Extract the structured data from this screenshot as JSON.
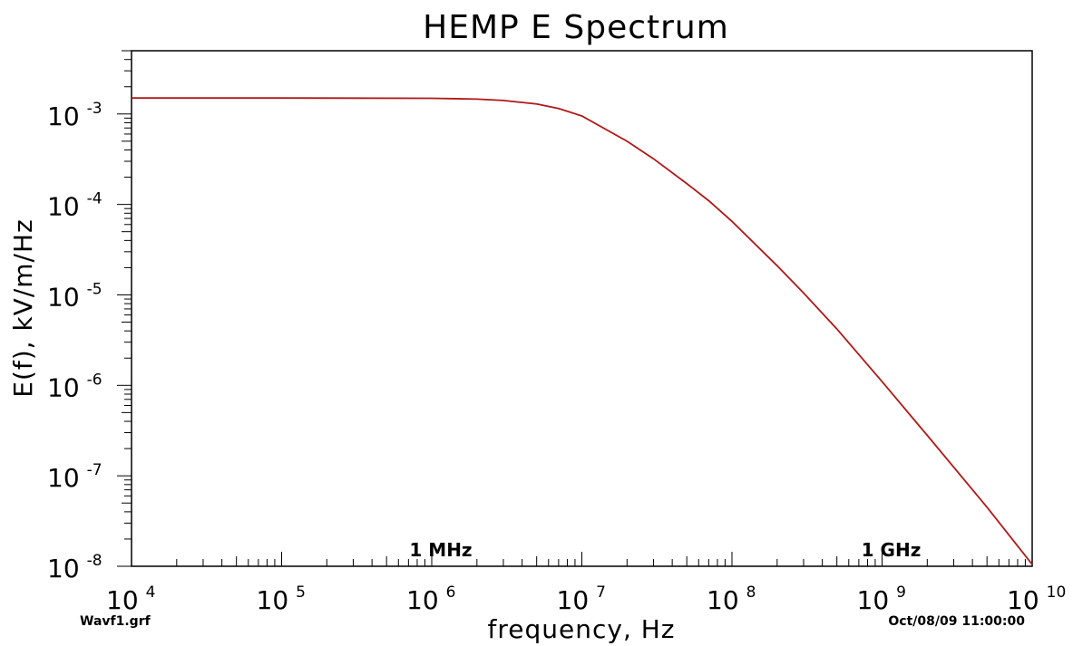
{
  "chart_data": {
    "type": "line",
    "title": "HEMP E Spectrum",
    "xlabel": "frequency, Hz",
    "ylabel": "E(f), kV/m/Hz",
    "xscale": "log",
    "yscale": "log",
    "xlim": [
      10000,
      10000000000
    ],
    "ylim": [
      1e-08,
      0.005
    ],
    "grid": false,
    "x_ticks": [
      {
        "base": "10",
        "exp": "4",
        "value": 10000
      },
      {
        "base": "10",
        "exp": "5",
        "value": 100000
      },
      {
        "base": "10",
        "exp": "6",
        "value": 1000000
      },
      {
        "base": "10",
        "exp": "7",
        "value": 10000000
      },
      {
        "base": "10",
        "exp": "8",
        "value": 100000000
      },
      {
        "base": "10",
        "exp": "9",
        "value": 1000000000
      },
      {
        "base": "10",
        "exp": "10",
        "value": 10000000000
      }
    ],
    "y_ticks": [
      {
        "base": "10",
        "exp": "-8",
        "value": 1e-08
      },
      {
        "base": "10",
        "exp": "-7",
        "value": 1e-07
      },
      {
        "base": "10",
        "exp": "-6",
        "value": 1e-06
      },
      {
        "base": "10",
        "exp": "-5",
        "value": 1e-05
      },
      {
        "base": "10",
        "exp": "-4",
        "value": 0.0001
      },
      {
        "base": "10",
        "exp": "-3",
        "value": 0.001
      }
    ],
    "annotations": [
      {
        "text": "1 MHz",
        "x": 1000000
      },
      {
        "text": "1 GHz",
        "x": 1000000000
      }
    ],
    "series": [
      {
        "color": "#b01818",
        "x": [
          10000,
          100000,
          1000000,
          2000000,
          3000000,
          5000000,
          7000000,
          10000000,
          20000000,
          30000000,
          50000000,
          70000000,
          100000000,
          200000000,
          300000000,
          500000000,
          1000000000,
          2000000000,
          5000000000,
          10000000000
        ],
        "y": [
          0.0015,
          0.0015,
          0.00149,
          0.00146,
          0.00141,
          0.00129,
          0.00115,
          0.00095,
          0.0005,
          0.00032,
          0.00017,
          0.00011,
          6.5e-05,
          2.1e-05,
          1.05e-05,
          4.2e-06,
          1.1e-06,
          2.8e-07,
          4.5e-08,
          1.05e-08
        ]
      }
    ]
  },
  "footer": {
    "left": "Wavf1.grf",
    "right": "Oct/08/09  11:00:00"
  }
}
